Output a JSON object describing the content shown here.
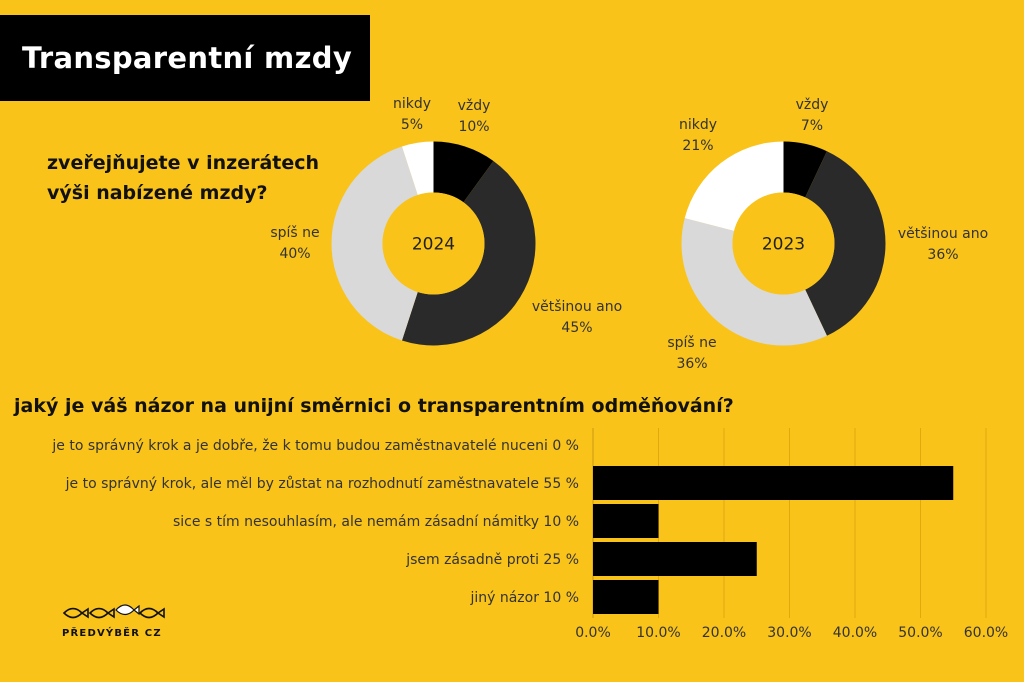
{
  "title": "Transparentní mzdy",
  "question_1": "zveřejňujete v inzerátech výši nabízené mzdy?",
  "question_2": "jaký je váš názor na unijní směrnici o transparentním odměňování?",
  "logo_text": "PŘEDVÝBĚR CZ",
  "colors": {
    "background": "#F9C31A",
    "black": "#000000",
    "dark": "#2B2A2A",
    "light_gray": "#D9D9D9",
    "white": "#FFFFFF"
  },
  "chart_data": [
    {
      "type": "pie",
      "center_label": "2024",
      "slices": [
        {
          "name": "vždy",
          "value": 10,
          "pct": "10%",
          "color": "#000000"
        },
        {
          "name": "většinou ano",
          "value": 45,
          "pct": "45%",
          "color": "#2B2A2A"
        },
        {
          "name": "spíš ne",
          "value": 40,
          "pct": "40%",
          "color": "#D9D9D9"
        },
        {
          "name": "nikdy",
          "value": 5,
          "pct": "5%",
          "color": "#FFFFFF"
        }
      ]
    },
    {
      "type": "pie",
      "center_label": "2023",
      "slices": [
        {
          "name": "vždy",
          "value": 7,
          "pct": "7%",
          "color": "#000000"
        },
        {
          "name": "většinou ano",
          "value": 36,
          "pct": "36%",
          "color": "#2B2A2A"
        },
        {
          "name": "spíš ne",
          "value": 36,
          "pct": "36%",
          "color": "#D9D9D9"
        },
        {
          "name": "nikdy",
          "value": 21,
          "pct": "21%",
          "color": "#FFFFFF"
        }
      ]
    },
    {
      "type": "bar",
      "orientation": "horizontal",
      "categories": [
        "je to správný krok a je dobře, že k tomu budou zaměstnavatelé nuceni 0 %",
        "je to správný krok, ale měl by zůstat na rozhodnutí zaměstnavatele 55 %",
        "sice s tím nesouhlasím, ale nemám zásadní námitky 10 %",
        "jsem zásadně proti 25 %",
        "jiný názor 10 %"
      ],
      "values": [
        0,
        55,
        10,
        25,
        10
      ],
      "xlim": [
        0,
        60
      ],
      "x_ticks": [
        "0.0%",
        "10.0%",
        "20.0%",
        "30.0%",
        "40.0%",
        "50.0%",
        "60.0%"
      ],
      "grid": true
    }
  ]
}
